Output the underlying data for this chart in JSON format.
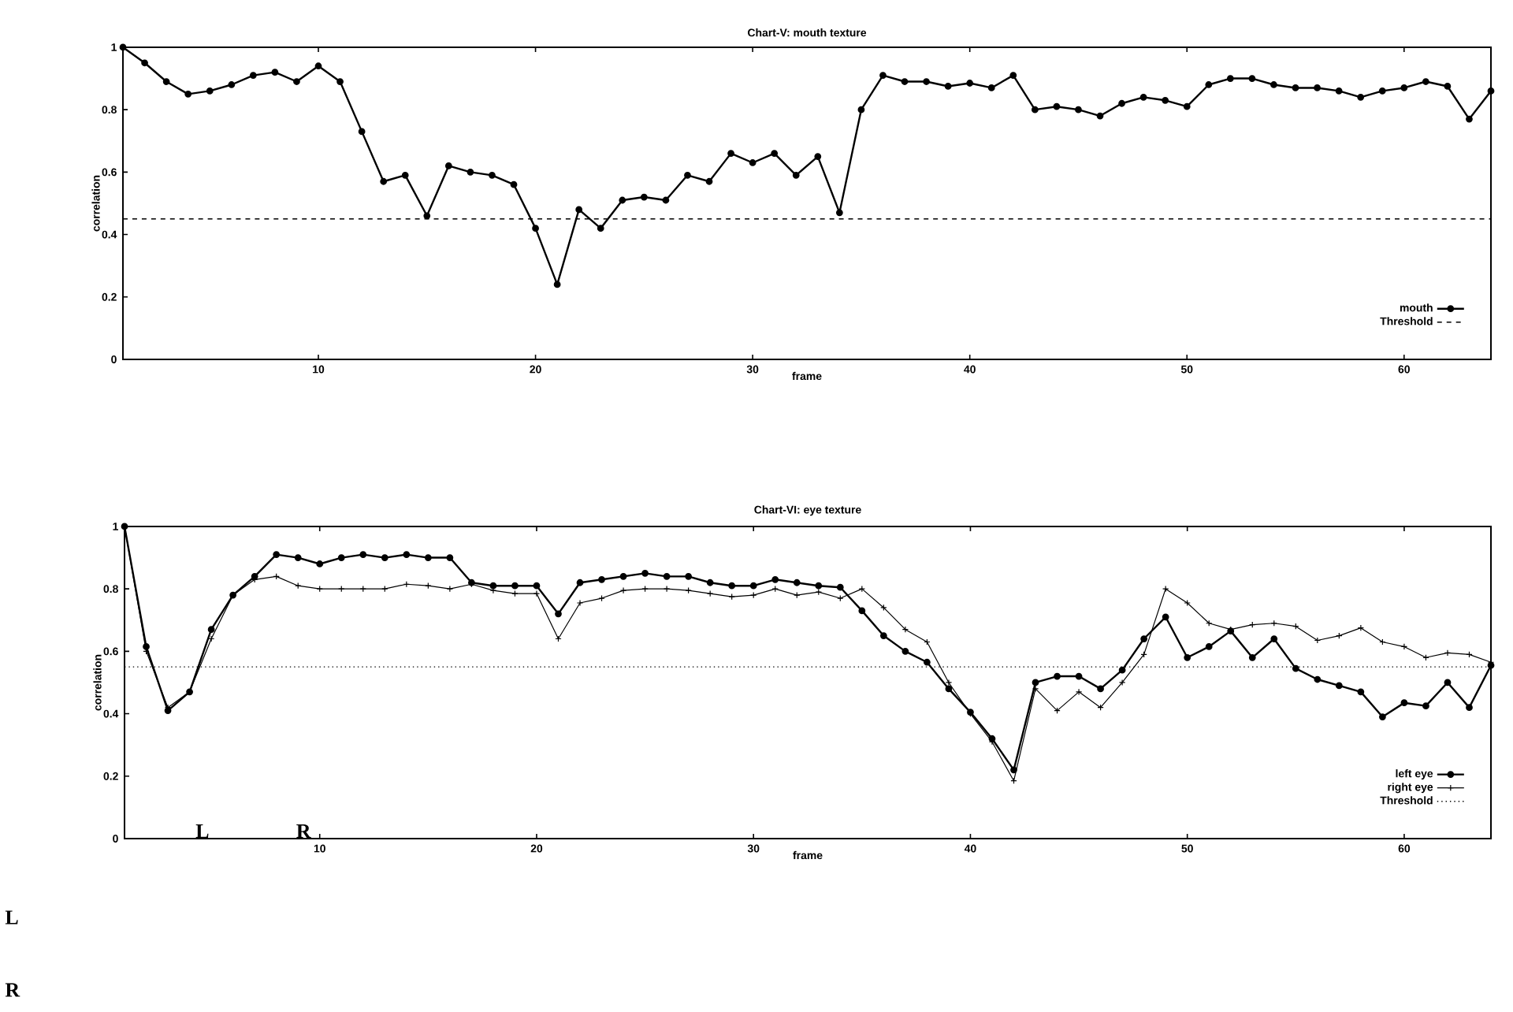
{
  "chart_data": [
    {
      "type": "line",
      "title": "Chart-V: mouth texture",
      "xlabel": "frame",
      "ylabel": "correlation",
      "x": [
        1,
        2,
        3,
        4,
        5,
        6,
        7,
        8,
        9,
        10,
        11,
        12,
        13,
        14,
        15,
        16,
        17,
        18,
        19,
        20,
        21,
        22,
        23,
        24,
        25,
        26,
        27,
        28,
        29,
        30,
        31,
        32,
        33,
        34,
        35,
        36,
        37,
        38,
        39,
        40,
        41,
        42,
        43,
        44,
        45,
        46,
        47,
        48,
        49,
        50,
        51,
        52,
        53,
        54,
        55,
        56,
        57,
        58,
        59,
        60,
        61,
        62,
        63,
        64
      ],
      "series": [
        {
          "name": "mouth",
          "color": "#000000",
          "marker": "circle",
          "values": [
            1.0,
            0.95,
            0.89,
            0.85,
            0.86,
            0.88,
            0.91,
            0.92,
            0.89,
            0.94,
            0.89,
            0.73,
            0.57,
            0.59,
            0.46,
            0.62,
            0.6,
            0.59,
            0.56,
            0.42,
            0.24,
            0.48,
            0.42,
            0.51,
            0.52,
            0.51,
            0.59,
            0.57,
            0.66,
            0.63,
            0.66,
            0.59,
            0.65,
            0.47,
            0.8,
            0.91,
            0.89,
            0.89,
            0.875,
            0.885,
            0.87,
            0.91,
            0.8,
            0.81,
            0.8,
            0.78,
            0.82,
            0.84,
            0.83,
            0.81,
            0.88,
            0.9,
            0.9,
            0.88,
            0.87,
            0.87,
            0.86,
            0.84,
            0.86,
            0.87,
            0.89,
            0.875,
            0.77,
            0.86
          ]
        }
      ],
      "ref_lines": [
        {
          "axis": "y",
          "value": 0.45,
          "label": "Threshold",
          "color": "#000000",
          "line_style": "dashed"
        }
      ],
      "xlim": [
        1,
        64
      ],
      "ylim": [
        0,
        1
      ],
      "xticks": [
        10,
        20,
        30,
        40,
        50,
        60
      ],
      "yticks": [
        0,
        0.2,
        0.4,
        0.6,
        0.8,
        1
      ],
      "legend": "bottom right",
      "grid": false
    },
    {
      "type": "line",
      "title": "Chart-VI: eye texture",
      "xlabel": "frame",
      "ylabel": "correlation",
      "x": [
        1,
        2,
        3,
        4,
        5,
        6,
        7,
        8,
        9,
        10,
        11,
        12,
        13,
        14,
        15,
        16,
        17,
        18,
        19,
        20,
        21,
        22,
        23,
        24,
        25,
        26,
        27,
        28,
        29,
        30,
        31,
        32,
        33,
        34,
        35,
        36,
        37,
        38,
        39,
        40,
        41,
        42,
        43,
        44,
        45,
        46,
        47,
        48,
        49,
        50,
        51,
        52,
        53,
        54,
        55,
        56,
        57,
        58,
        59,
        60,
        61,
        62,
        63,
        64
      ],
      "series": [
        {
          "name": "left eye",
          "color": "#000000",
          "marker": "circle",
          "values": [
            1.0,
            0.615,
            0.41,
            0.47,
            0.67,
            0.78,
            0.84,
            0.91,
            0.9,
            0.88,
            0.9,
            0.91,
            0.9,
            0.91,
            0.9,
            0.9,
            0.82,
            0.81,
            0.81,
            0.81,
            0.72,
            0.82,
            0.83,
            0.84,
            0.85,
            0.84,
            0.84,
            0.82,
            0.81,
            0.81,
            0.83,
            0.82,
            0.81,
            0.805,
            0.73,
            0.65,
            0.6,
            0.565,
            0.48,
            0.405,
            0.32,
            0.22,
            0.5,
            0.52,
            0.52,
            0.48,
            0.54,
            0.64,
            0.71,
            0.58,
            0.615,
            0.665,
            0.58,
            0.64,
            0.545,
            0.51,
            0.49,
            0.47,
            0.39,
            0.435,
            0.425,
            0.5,
            0.42,
            0.555
          ]
        },
        {
          "name": "right eye",
          "color": "#000000",
          "marker": "cross",
          "values": [
            1.0,
            0.6,
            0.42,
            0.47,
            0.64,
            0.78,
            0.83,
            0.84,
            0.81,
            0.8,
            0.8,
            0.8,
            0.8,
            0.815,
            0.81,
            0.8,
            0.815,
            0.795,
            0.785,
            0.785,
            0.64,
            0.755,
            0.77,
            0.795,
            0.8,
            0.8,
            0.795,
            0.785,
            0.775,
            0.78,
            0.8,
            0.78,
            0.79,
            0.77,
            0.8,
            0.74,
            0.67,
            0.63,
            0.5,
            0.4,
            0.31,
            0.185,
            0.48,
            0.41,
            0.47,
            0.42,
            0.5,
            0.59,
            0.8,
            0.755,
            0.69,
            0.67,
            0.685,
            0.69,
            0.68,
            0.635,
            0.65,
            0.675,
            0.63,
            0.615,
            0.58,
            0.595,
            0.59,
            0.565
          ]
        }
      ],
      "ref_lines": [
        {
          "axis": "y",
          "value": 0.55,
          "label": "Threshold",
          "color": "#000000",
          "line_style": "dotted"
        }
      ],
      "xlim": [
        1,
        64
      ],
      "ylim": [
        0,
        1
      ],
      "xticks": [
        10,
        20,
        30,
        40,
        50,
        60
      ],
      "yticks": [
        0,
        0.2,
        0.4,
        0.6,
        0.8,
        1
      ],
      "legend": "bottom right",
      "grid": false,
      "annotations": [
        "L",
        "R",
        "L",
        "R"
      ]
    }
  ]
}
